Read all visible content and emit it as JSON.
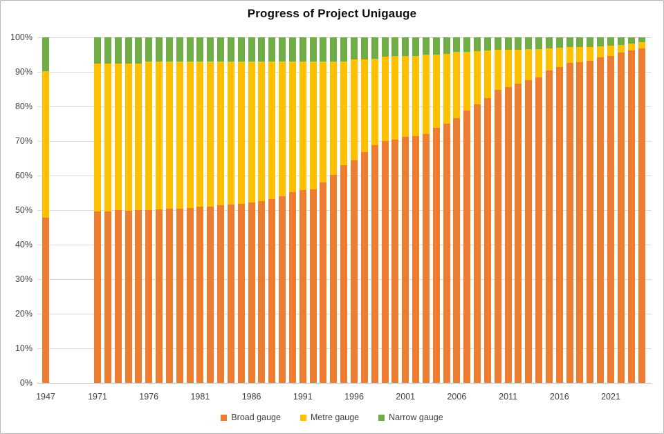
{
  "title": "Progress of Project Unigauge",
  "colors": {
    "broad_gauge": "#ED7D31",
    "metre_gauge": "#FFC000",
    "narrow_gauge": "#70AD47",
    "gridline": "#DADADA",
    "axis_line": "#BFBFBF",
    "tick_text": "#404040",
    "title_text": "#0D0D0D",
    "chart_border": "#B6B6B6",
    "background": "#FFFFFF"
  },
  "y_axis": {
    "min": 0,
    "max": 100,
    "step": 10,
    "ticks": [
      {
        "value": 100,
        "label": "100%"
      },
      {
        "value": 90,
        "label": "90%"
      },
      {
        "value": 80,
        "label": "80%"
      },
      {
        "value": 70,
        "label": "70%"
      },
      {
        "value": 60,
        "label": "60%"
      },
      {
        "value": 50,
        "label": "50%"
      },
      {
        "value": 40,
        "label": "40%"
      },
      {
        "value": 30,
        "label": "30%"
      },
      {
        "value": 20,
        "label": "20%"
      },
      {
        "value": 10,
        "label": "10%"
      },
      {
        "value": 0,
        "label": "0%"
      }
    ]
  },
  "x_axis": {
    "ticks": [
      {
        "year": 1947,
        "label": "1947"
      },
      {
        "year": 1971,
        "label": "1971"
      },
      {
        "year": 1976,
        "label": "1976"
      },
      {
        "year": 1981,
        "label": "1981"
      },
      {
        "year": 1986,
        "label": "1986"
      },
      {
        "year": 1991,
        "label": "1991"
      },
      {
        "year": 1996,
        "label": "1996"
      },
      {
        "year": 2001,
        "label": "2001"
      },
      {
        "year": 2006,
        "label": "2006"
      },
      {
        "year": 2011,
        "label": "2011"
      },
      {
        "year": 2016,
        "label": "2016"
      },
      {
        "year": 2021,
        "label": "2021"
      }
    ]
  },
  "legend": [
    {
      "label": "Broad gauge",
      "color": "#ED7D31"
    },
    {
      "label": "Metre gauge",
      "color": "#FFC000"
    },
    {
      "label": "Narrow gauge",
      "color": "#70AD47"
    }
  ],
  "chart_data": {
    "type": "bar",
    "variant": "stacked-100-percent",
    "title": "Progress of Project Unigauge",
    "xlabel": "",
    "ylabel": "",
    "ylim": [
      0,
      100
    ],
    "grid": true,
    "legend_position": "bottom",
    "note_layout": "single bar for 1947, gap, then yearly bars 1971-2024",
    "categories": [
      1947,
      1971,
      1972,
      1973,
      1974,
      1975,
      1976,
      1977,
      1978,
      1979,
      1980,
      1981,
      1982,
      1983,
      1984,
      1985,
      1986,
      1987,
      1988,
      1989,
      1990,
      1991,
      1992,
      1993,
      1994,
      1995,
      1996,
      1997,
      1998,
      1999,
      2000,
      2001,
      2002,
      2003,
      2004,
      2005,
      2006,
      2007,
      2008,
      2009,
      2010,
      2011,
      2012,
      2013,
      2014,
      2015,
      2016,
      2017,
      2018,
      2019,
      2020,
      2021,
      2022,
      2023,
      2024
    ],
    "series": [
      {
        "name": "Broad gauge",
        "color": "#ED7D31",
        "values": [
          47.8,
          49.6,
          49.7,
          50.0,
          49.8,
          50.0,
          50.1,
          50.2,
          50.5,
          50.5,
          50.6,
          51.0,
          51.1,
          51.4,
          51.7,
          51.8,
          52.2,
          52.7,
          53.2,
          54.0,
          55.2,
          55.9,
          56.0,
          58.0,
          60.2,
          63.0,
          64.5,
          66.8,
          68.8,
          70.0,
          70.5,
          71.2,
          71.5,
          72.0,
          73.8,
          75.0,
          76.7,
          78.8,
          80.7,
          82.5,
          84.8,
          85.7,
          86.7,
          87.6,
          88.5,
          90.5,
          91.4,
          92.6,
          92.8,
          93.2,
          94.2,
          94.6,
          95.7,
          96.3,
          96.8
        ]
      },
      {
        "name": "Metre gauge",
        "color": "#FFC000",
        "values": [
          42.5,
          42.8,
          42.8,
          42.5,
          42.7,
          42.5,
          42.9,
          42.8,
          42.5,
          42.5,
          42.4,
          42.0,
          41.9,
          41.6,
          41.3,
          41.2,
          40.9,
          40.4,
          39.9,
          39.1,
          37.9,
          37.2,
          37.1,
          35.1,
          32.9,
          30.1,
          29.1,
          26.8,
          25.1,
          24.4,
          24.1,
          23.4,
          23.1,
          23.1,
          21.3,
          20.2,
          19.1,
          17.0,
          15.4,
          13.8,
          11.6,
          10.7,
          9.7,
          9.0,
          8.1,
          6.3,
          5.6,
          4.6,
          4.5,
          4.1,
          3.3,
          3.0,
          2.1,
          2.0,
          1.8
        ]
      },
      {
        "name": "Narrow gauge",
        "color": "#70AD47",
        "values": [
          9.7,
          7.6,
          7.5,
          7.5,
          7.5,
          7.5,
          7.0,
          7.0,
          7.0,
          7.0,
          7.0,
          7.0,
          7.0,
          7.0,
          7.0,
          7.0,
          6.9,
          6.9,
          6.9,
          6.9,
          6.9,
          6.9,
          6.9,
          6.9,
          6.9,
          6.9,
          6.4,
          6.4,
          6.1,
          5.6,
          5.4,
          5.4,
          5.4,
          4.9,
          4.9,
          4.8,
          4.2,
          4.2,
          3.9,
          3.7,
          3.6,
          3.6,
          3.6,
          3.4,
          3.4,
          3.2,
          3.0,
          2.8,
          2.7,
          2.7,
          2.5,
          2.4,
          2.2,
          1.7,
          1.4
        ]
      }
    ]
  }
}
